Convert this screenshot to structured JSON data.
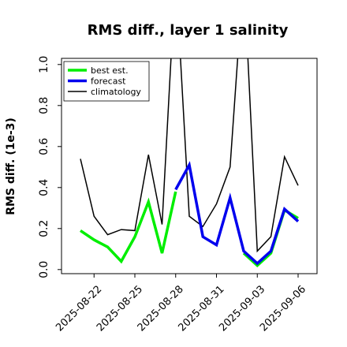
{
  "chart_data": {
    "type": "line",
    "title": "RMS diff., layer 1 salinity",
    "xlabel": "",
    "ylabel": "RMS diff. (1e-3)",
    "x": [
      "2025-08-21",
      "2025-08-22",
      "2025-08-23",
      "2025-08-24",
      "2025-08-25",
      "2025-08-26",
      "2025-08-27",
      "2025-08-28",
      "2025-08-29",
      "2025-08-30",
      "2025-08-31",
      "2025-09-01",
      "2025-09-02",
      "2025-09-03",
      "2025-09-04",
      "2025-09-05",
      "2025-09-06"
    ],
    "xticks": [
      "2025-08-22",
      "2025-08-25",
      "2025-08-28",
      "2025-08-31",
      "2025-09-03",
      "2025-09-06"
    ],
    "xtick_colors": [
      "#000000",
      "#000000",
      "#228b22",
      "#000000",
      "#000000",
      "#000000"
    ],
    "yticks": [
      "0.0",
      "0.2",
      "0.4",
      "0.6",
      "0.8",
      "1.0"
    ],
    "ylim": [
      -0.02,
      1.03
    ],
    "grid": false,
    "legend_position": "top-left",
    "series": [
      {
        "name": "best est.",
        "color": "#00ee00",
        "values": [
          0.19,
          0.145,
          0.11,
          0.04,
          0.16,
          0.33,
          0.08,
          0.38,
          null,
          null,
          null,
          null,
          0.08,
          0.02,
          0.08,
          0.29,
          0.25
        ]
      },
      {
        "name": "forecast",
        "color": "#0000ee",
        "values": [
          null,
          null,
          null,
          null,
          null,
          null,
          null,
          0.39,
          0.51,
          0.16,
          0.12,
          0.35,
          0.09,
          0.03,
          0.09,
          0.295,
          0.235
        ]
      },
      {
        "name": "climatology",
        "color": "#000000",
        "values": [
          0.54,
          0.26,
          0.17,
          0.195,
          0.19,
          0.56,
          0.22,
          1.45,
          0.26,
          0.21,
          0.32,
          0.5,
          1.45,
          0.09,
          0.16,
          0.55,
          0.41
        ]
      }
    ]
  }
}
